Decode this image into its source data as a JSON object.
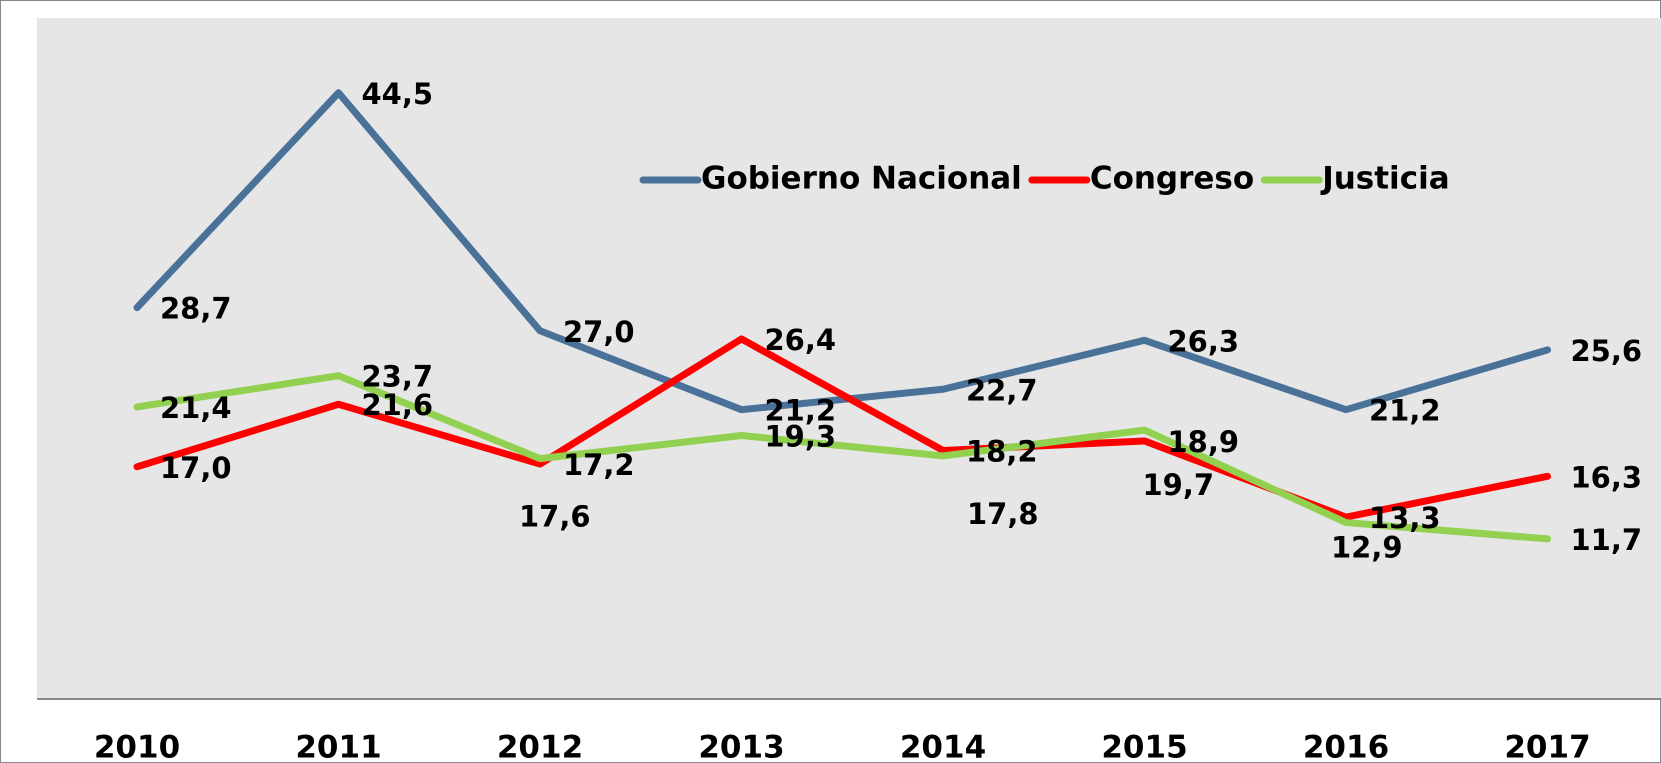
{
  "chart_data": {
    "type": "line",
    "categories": [
      "2010",
      "2011",
      "2012",
      "2013",
      "2014",
      "2015",
      "2016",
      "2017"
    ],
    "ylim": [
      0,
      50
    ],
    "legend": "top-right",
    "series": [
      {
        "name": "Gobierno Nacional",
        "color": "#4a7198",
        "values": [
          28.7,
          44.5,
          27.0,
          21.2,
          22.7,
          26.3,
          21.2,
          25.6
        ],
        "value_labels": [
          "28,7",
          "44,5",
          "27,0",
          "21,2",
          "22,7",
          "26,3",
          "21,2",
          "25,6"
        ]
      },
      {
        "name": "Congreso",
        "color": "#ff0000",
        "values": [
          17.0,
          21.6,
          17.2,
          26.4,
          18.2,
          18.9,
          13.3,
          16.3
        ],
        "value_labels": [
          "17,0",
          "21,6",
          "17,2",
          "26,4",
          "18,2",
          "18,9",
          "13,3",
          "16,3"
        ]
      },
      {
        "name": "Justicia",
        "color": "#92d050",
        "values": [
          21.4,
          23.7,
          17.6,
          19.3,
          17.8,
          19.7,
          12.9,
          11.7
        ],
        "value_labels": [
          "21,4",
          "23,7",
          "17,6",
          "19,3",
          "17,8",
          "19,7",
          "12,9",
          "11,7"
        ]
      }
    ]
  }
}
